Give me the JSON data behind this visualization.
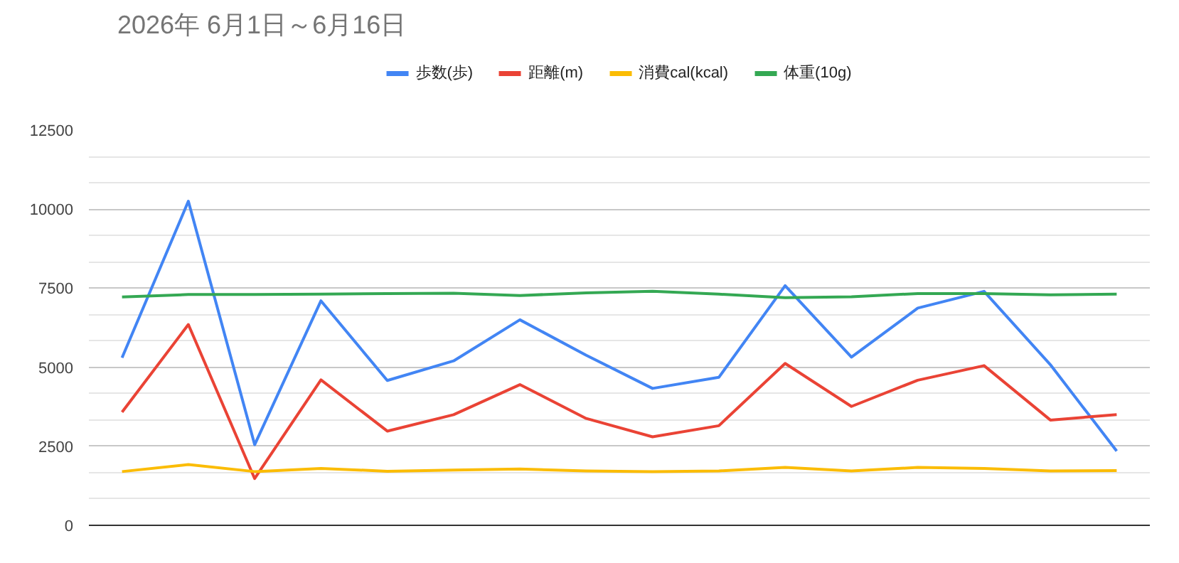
{
  "chart_data": {
    "type": "line",
    "title": "2026年 6月1日～6月16日",
    "categories": [
      null,
      null,
      null,
      null,
      null,
      null,
      null,
      null,
      null,
      null,
      null,
      null,
      null,
      null,
      null,
      null
    ],
    "series": [
      {
        "name": "歩数(歩)",
        "color": "#4285f4",
        "values": [
          5300,
          10250,
          2550,
          7100,
          4580,
          5200,
          6500,
          5380,
          4330,
          4680,
          7580,
          5320,
          6870,
          7400,
          5080,
          2350
        ]
      },
      {
        "name": "距離(m)",
        "color": "#ea4335",
        "values": [
          3580,
          6350,
          1480,
          4600,
          2980,
          3500,
          4450,
          3380,
          2800,
          3150,
          5120,
          3760,
          4590,
          5050,
          3330,
          3500
        ]
      },
      {
        "name": "消費cal(kcal)",
        "color": "#fbbc04",
        "values": [
          1700,
          1920,
          1700,
          1800,
          1710,
          1750,
          1780,
          1720,
          1700,
          1720,
          1830,
          1720,
          1830,
          1800,
          1720,
          1730
        ]
      },
      {
        "name": "体重(10g)",
        "color": "#34a853",
        "values": [
          7220,
          7300,
          7300,
          7310,
          7330,
          7340,
          7270,
          7350,
          7400,
          7310,
          7200,
          7230,
          7330,
          7330,
          7290,
          7310
        ]
      }
    ],
    "ylim": [
      0,
      12500
    ],
    "yticks": [
      0,
      2500,
      5000,
      7500,
      10000,
      12500
    ],
    "grid": "y",
    "legend": "top",
    "tick_labels": "y",
    "marker": "none",
    "line_style": "solid"
  }
}
